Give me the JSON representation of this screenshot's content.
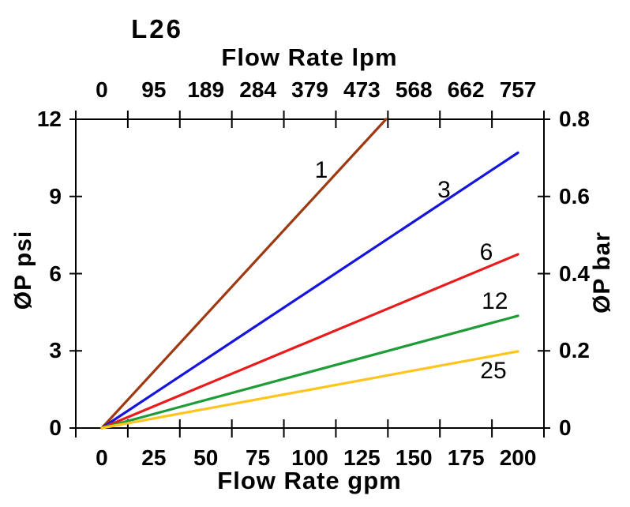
{
  "title": "L26",
  "axes": {
    "top": {
      "title": "Flow Rate lpm",
      "tick_labels": [
        "0",
        "95",
        "189",
        "284",
        "379",
        "473",
        "568",
        "662",
        "757"
      ]
    },
    "bottom": {
      "title": "Flow Rate gpm",
      "tick_labels": [
        "0",
        "25",
        "50",
        "75",
        "100",
        "125",
        "150",
        "175",
        "200"
      ]
    },
    "left": {
      "title": "ØP psi",
      "tick_labels": [
        "0",
        "3",
        "6",
        "9",
        "12"
      ],
      "tick_values": [
        0,
        3,
        6,
        9,
        12
      ]
    },
    "right": {
      "title": "ØP bar",
      "tick_labels": [
        "0",
        "0.2",
        "0.4",
        "0.6",
        "0.8"
      ],
      "tick_values_psi": [
        0,
        3,
        6,
        9,
        12
      ]
    }
  },
  "chart_data": {
    "type": "line",
    "title": "L26",
    "xlabel_bottom": "Flow Rate gpm",
    "xlabel_top": "Flow Rate lpm",
    "ylabel_left": "ØP psi",
    "ylabel_right": "ØP bar",
    "x_ticks_gpm": [
      0,
      25,
      50,
      75,
      100,
      125,
      150,
      175,
      200
    ],
    "x_ticks_lpm": [
      0,
      95,
      189,
      284,
      379,
      473,
      568,
      662,
      757
    ],
    "ylim_psi": [
      0,
      12
    ],
    "ylim_bar": [
      0,
      0.8
    ],
    "grid": false,
    "series": [
      {
        "label": "1",
        "color": "#9e3a12",
        "points": [
          [
            0,
            0
          ],
          [
            136.6,
            12
          ]
        ],
        "label_pos": [
          105.5,
          10.0
        ]
      },
      {
        "label": "3",
        "color": "#1414dd",
        "points": [
          [
            0,
            0
          ],
          [
            200,
            10.7
          ]
        ],
        "label_pos": [
          164.5,
          9.25
        ]
      },
      {
        "label": "6",
        "color": "#e81c1c",
        "points": [
          [
            0,
            0
          ],
          [
            200,
            6.75
          ]
        ],
        "label_pos": [
          184.8,
          6.82
        ]
      },
      {
        "label": "12",
        "color": "#1f9c38",
        "points": [
          [
            0,
            0
          ],
          [
            200,
            4.36
          ]
        ],
        "label_pos": [
          188.9,
          4.91
        ]
      },
      {
        "label": "25",
        "color": "#fdc51d",
        "points": [
          [
            0,
            0
          ],
          [
            200,
            2.98
          ]
        ],
        "label_pos": [
          188.2,
          2.21
        ]
      }
    ],
    "axis_color": "#000000"
  }
}
